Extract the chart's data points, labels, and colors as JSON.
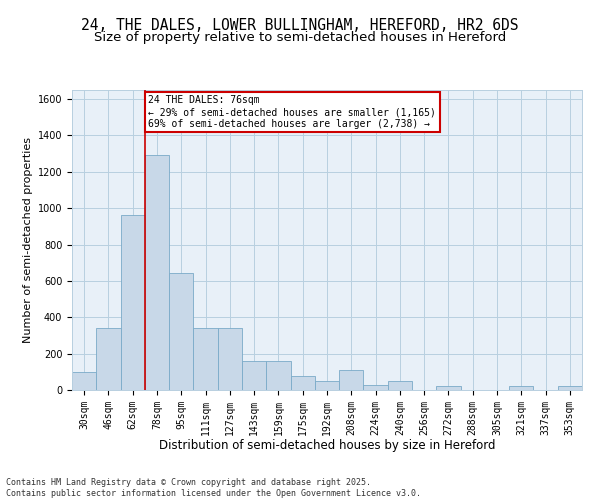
{
  "title1": "24, THE DALES, LOWER BULLINGHAM, HEREFORD, HR2 6DS",
  "title2": "Size of property relative to semi-detached houses in Hereford",
  "xlabel": "Distribution of semi-detached houses by size in Hereford",
  "ylabel": "Number of semi-detached properties",
  "categories": [
    "30sqm",
    "46sqm",
    "62sqm",
    "78sqm",
    "95sqm",
    "111sqm",
    "127sqm",
    "143sqm",
    "159sqm",
    "175sqm",
    "192sqm",
    "208sqm",
    "224sqm",
    "240sqm",
    "256sqm",
    "272sqm",
    "288sqm",
    "305sqm",
    "321sqm",
    "337sqm",
    "353sqm"
  ],
  "values": [
    100,
    340,
    960,
    1290,
    645,
    340,
    340,
    160,
    160,
    75,
    50,
    110,
    30,
    50,
    0,
    20,
    0,
    0,
    20,
    0,
    20
  ],
  "bar_color": "#c8d8e8",
  "bar_edge_color": "#7aaac8",
  "vline_color": "#cc0000",
  "vline_bar_index": 3,
  "property_name": "24 THE DALES: 76sqm",
  "pct_smaller": 29,
  "n_smaller": 1165,
  "pct_larger": 69,
  "n_larger": 2738,
  "annotation_box_color": "#cc0000",
  "ylim": [
    0,
    1650
  ],
  "yticks": [
    0,
    200,
    400,
    600,
    800,
    1000,
    1200,
    1400,
    1600
  ],
  "grid_color": "#b8cfe0",
  "bg_color": "#e8f0f8",
  "footnote": "Contains HM Land Registry data © Crown copyright and database right 2025.\nContains public sector information licensed under the Open Government Licence v3.0.",
  "title1_fontsize": 10.5,
  "title2_fontsize": 9.5,
  "xlabel_fontsize": 8.5,
  "ylabel_fontsize": 8,
  "tick_fontsize": 7,
  "annot_fontsize": 7,
  "footnote_fontsize": 6
}
